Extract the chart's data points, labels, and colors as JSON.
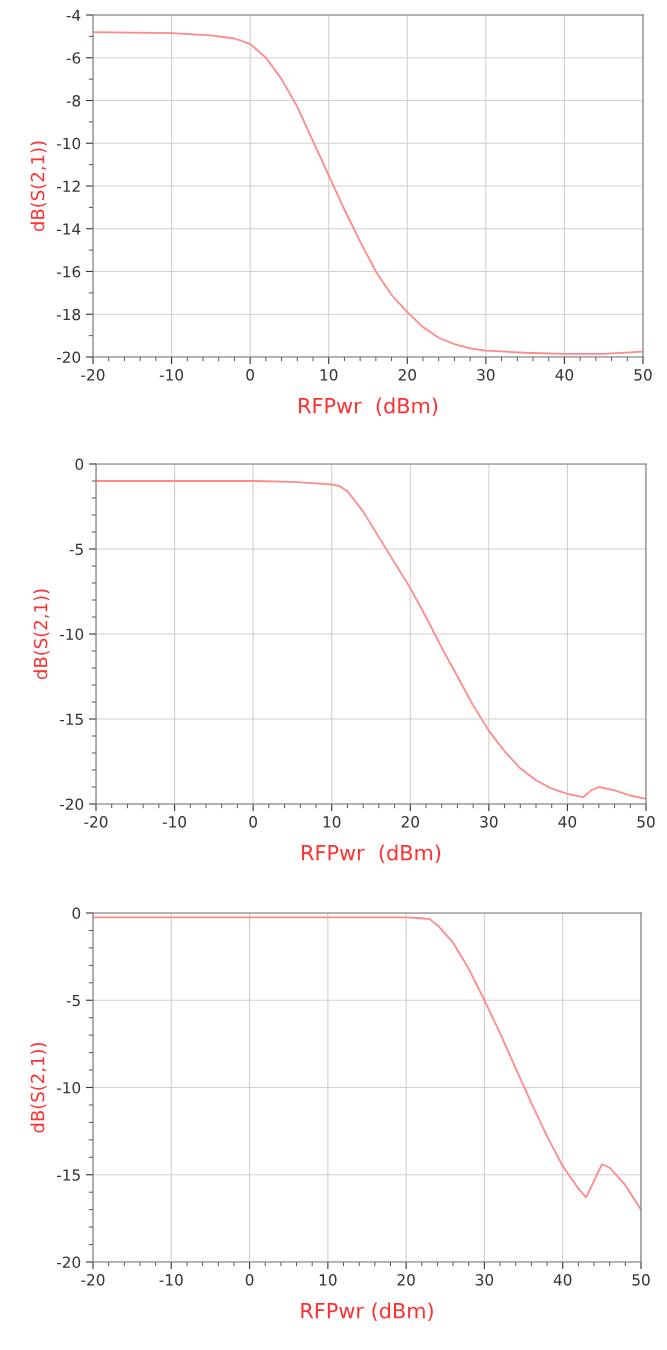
{
  "chart_data": [
    {
      "type": "line",
      "xlabel": "RFPwr  (dBm)",
      "ylabel": "dB(S(2,1))",
      "grid": true,
      "xlim": [
        -20,
        50
      ],
      "ylim": [
        -20,
        -4
      ],
      "xticks": [
        -20,
        {
          "value": -18,
          "label": null
        },
        {
          "value": -16,
          "label": null
        },
        {
          "value": -14,
          "label": null
        },
        {
          "value": -12,
          "label": null
        },
        -10,
        {
          "value": -8,
          "label": null
        },
        {
          "value": -6,
          "label": null
        },
        {
          "value": -4,
          "label": null
        },
        {
          "value": -2,
          "label": null
        },
        0,
        {
          "value": 2,
          "label": null
        },
        {
          "value": 4,
          "label": null
        },
        {
          "value": 6,
          "label": null
        },
        {
          "value": 8,
          "label": null
        },
        10,
        {
          "value": 12,
          "label": null
        },
        {
          "value": 14,
          "label": null
        },
        {
          "value": 16,
          "label": null
        },
        {
          "value": 18,
          "label": null
        },
        20,
        {
          "value": 22,
          "label": null
        },
        {
          "value": 24,
          "label": null
        },
        {
          "value": 26,
          "label": null
        },
        {
          "value": 28,
          "label": null
        },
        30,
        {
          "value": 32,
          "label": null
        },
        {
          "value": 34,
          "label": null
        },
        {
          "value": 36,
          "label": null
        },
        {
          "value": 38,
          "label": null
        },
        40,
        {
          "value": 42,
          "label": null
        },
        {
          "value": 44,
          "label": null
        },
        {
          "value": 46,
          "label": null
        },
        {
          "value": 48,
          "label": null
        },
        50
      ],
      "yticks": [
        -20,
        {
          "value": -19,
          "label": null
        },
        -18,
        {
          "value": -17,
          "label": null
        },
        -16,
        {
          "value": -15,
          "label": null
        },
        -14,
        {
          "value": -13,
          "label": null
        },
        -12,
        {
          "value": -11,
          "label": null
        },
        -10,
        {
          "value": -9,
          "label": null
        },
        -8,
        {
          "value": -7,
          "label": null
        },
        -6,
        {
          "value": -5,
          "label": null
        },
        -4
      ],
      "series": [
        {
          "color": "#ff8a8a",
          "x": [
            -20,
            -10,
            -5,
            -2,
            0,
            2,
            4,
            6,
            8,
            10,
            12,
            14,
            16,
            18,
            20,
            22,
            24,
            26,
            28,
            30,
            35,
            40,
            45,
            50
          ],
          "values": [
            -4.8,
            -4.85,
            -4.95,
            -5.1,
            -5.35,
            -6.0,
            -7.0,
            -8.3,
            -9.9,
            -11.5,
            -13.1,
            -14.6,
            -16.0,
            -17.1,
            -17.9,
            -18.6,
            -19.1,
            -19.4,
            -19.6,
            -19.7,
            -19.8,
            -19.85,
            -19.85,
            -19.75
          ]
        }
      ]
    },
    {
      "type": "line",
      "xlabel": "RFPwr  (dBm)",
      "ylabel": "dB(S(2,1))",
      "grid": true,
      "xlim": [
        -20,
        50
      ],
      "ylim": [
        -20,
        0
      ],
      "xticks": [
        -20,
        {
          "value": -18,
          "label": null
        },
        {
          "value": -16,
          "label": null
        },
        {
          "value": -14,
          "label": null
        },
        {
          "value": -12,
          "label": null
        },
        -10,
        {
          "value": -8,
          "label": null
        },
        {
          "value": -6,
          "label": null
        },
        {
          "value": -4,
          "label": null
        },
        {
          "value": -2,
          "label": null
        },
        0,
        {
          "value": 2,
          "label": null
        },
        {
          "value": 4,
          "label": null
        },
        {
          "value": 6,
          "label": null
        },
        {
          "value": 8,
          "label": null
        },
        10,
        {
          "value": 12,
          "label": null
        },
        {
          "value": 14,
          "label": null
        },
        {
          "value": 16,
          "label": null
        },
        {
          "value": 18,
          "label": null
        },
        20,
        {
          "value": 22,
          "label": null
        },
        {
          "value": 24,
          "label": null
        },
        {
          "value": 26,
          "label": null
        },
        {
          "value": 28,
          "label": null
        },
        30,
        {
          "value": 32,
          "label": null
        },
        {
          "value": 34,
          "label": null
        },
        {
          "value": 36,
          "label": null
        },
        {
          "value": 38,
          "label": null
        },
        40,
        {
          "value": 42,
          "label": null
        },
        {
          "value": 44,
          "label": null
        },
        {
          "value": 46,
          "label": null
        },
        {
          "value": 48,
          "label": null
        },
        50
      ],
      "yticks": [
        -20,
        {
          "value": -19,
          "label": null
        },
        {
          "value": -18,
          "label": null
        },
        {
          "value": -17,
          "label": null
        },
        {
          "value": -16,
          "label": null
        },
        -15,
        {
          "value": -14,
          "label": null
        },
        {
          "value": -13,
          "label": null
        },
        {
          "value": -12,
          "label": null
        },
        {
          "value": -11,
          "label": null
        },
        -10,
        {
          "value": -9,
          "label": null
        },
        {
          "value": -8,
          "label": null
        },
        {
          "value": -7,
          "label": null
        },
        {
          "value": -6,
          "label": null
        },
        -5,
        {
          "value": -4,
          "label": null
        },
        {
          "value": -3,
          "label": null
        },
        {
          "value": -2,
          "label": null
        },
        {
          "value": -1,
          "label": null
        },
        0
      ],
      "series": [
        {
          "color": "#ff8a8a",
          "x": [
            -20,
            0,
            5,
            10,
            11,
            12,
            14,
            16,
            18,
            20,
            22,
            24,
            26,
            28,
            30,
            32,
            34,
            36,
            38,
            40,
            42,
            43,
            44,
            46,
            48,
            50
          ],
          "values": [
            -1.0,
            -1.0,
            -1.05,
            -1.2,
            -1.3,
            -1.6,
            -2.8,
            -4.3,
            -5.8,
            -7.3,
            -9.0,
            -10.8,
            -12.5,
            -14.2,
            -15.7,
            -16.9,
            -17.9,
            -18.6,
            -19.1,
            -19.4,
            -19.6,
            -19.2,
            -19.0,
            -19.2,
            -19.5,
            -19.7
          ]
        }
      ]
    },
    {
      "type": "line",
      "xlabel": "RFPwr (dBm)",
      "ylabel": "dB(S(2,1))",
      "grid": true,
      "xlim": [
        -20,
        50
      ],
      "ylim": [
        -20,
        0
      ],
      "xticks": [
        -20,
        {
          "value": -18,
          "label": null
        },
        {
          "value": -16,
          "label": null
        },
        {
          "value": -14,
          "label": null
        },
        {
          "value": -12,
          "label": null
        },
        -10,
        {
          "value": -8,
          "label": null
        },
        {
          "value": -6,
          "label": null
        },
        {
          "value": -4,
          "label": null
        },
        {
          "value": -2,
          "label": null
        },
        0,
        {
          "value": 2,
          "label": null
        },
        {
          "value": 4,
          "label": null
        },
        {
          "value": 6,
          "label": null
        },
        {
          "value": 8,
          "label": null
        },
        10,
        {
          "value": 12,
          "label": null
        },
        {
          "value": 14,
          "label": null
        },
        {
          "value": 16,
          "label": null
        },
        {
          "value": 18,
          "label": null
        },
        20,
        {
          "value": 22,
          "label": null
        },
        {
          "value": 24,
          "label": null
        },
        {
          "value": 26,
          "label": null
        },
        {
          "value": 28,
          "label": null
        },
        30,
        {
          "value": 32,
          "label": null
        },
        {
          "value": 34,
          "label": null
        },
        {
          "value": 36,
          "label": null
        },
        {
          "value": 38,
          "label": null
        },
        40,
        {
          "value": 42,
          "label": null
        },
        {
          "value": 44,
          "label": null
        },
        {
          "value": 46,
          "label": null
        },
        {
          "value": 48,
          "label": null
        },
        50
      ],
      "yticks": [
        -20,
        {
          "value": -19,
          "label": null
        },
        {
          "value": -18,
          "label": null
        },
        {
          "value": -17,
          "label": null
        },
        {
          "value": -16,
          "label": null
        },
        -15,
        {
          "value": -14,
          "label": null
        },
        {
          "value": -13,
          "label": null
        },
        {
          "value": -12,
          "label": null
        },
        {
          "value": -11,
          "label": null
        },
        -10,
        {
          "value": -9,
          "label": null
        },
        {
          "value": -8,
          "label": null
        },
        {
          "value": -7,
          "label": null
        },
        {
          "value": -6,
          "label": null
        },
        -5,
        {
          "value": -4,
          "label": null
        },
        {
          "value": -3,
          "label": null
        },
        {
          "value": -2,
          "label": null
        },
        {
          "value": -1,
          "label": null
        },
        0
      ],
      "series": [
        {
          "color": "#ff8a8a",
          "x": [
            -20,
            20,
            22,
            23,
            24,
            26,
            28,
            30,
            32,
            34,
            36,
            38,
            40,
            42,
            43,
            45,
            46,
            48,
            50
          ],
          "values": [
            -0.25,
            -0.25,
            -0.3,
            -0.35,
            -0.7,
            -1.7,
            -3.2,
            -5.0,
            -6.9,
            -8.9,
            -10.9,
            -12.8,
            -14.5,
            -15.8,
            -16.3,
            -14.4,
            -14.6,
            -15.6,
            -17.0
          ]
        }
      ]
    }
  ]
}
